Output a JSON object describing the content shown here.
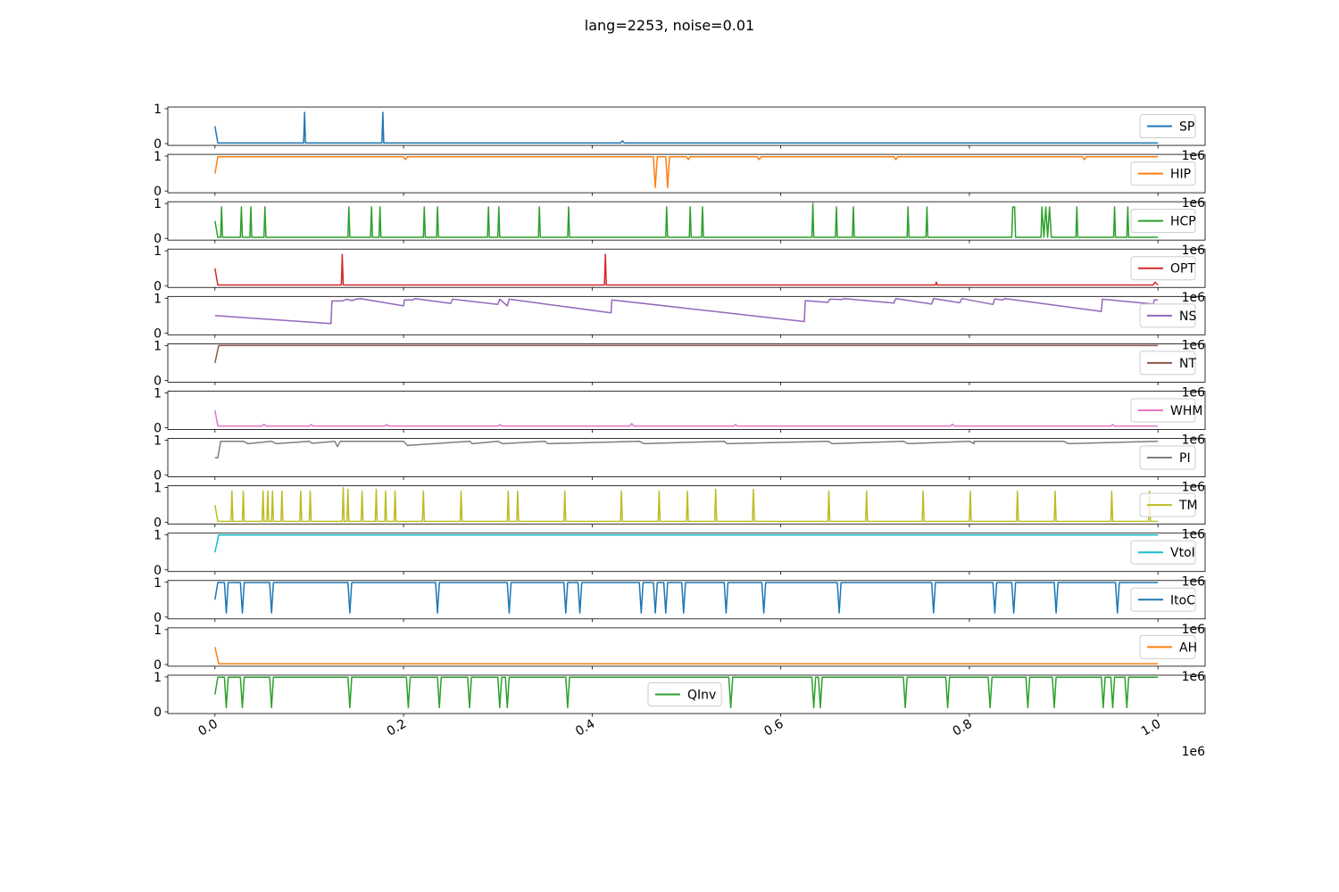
{
  "chart_data": {
    "type": "line",
    "title": "lang=2253, noise=0.01",
    "x_offset_label": "1e6",
    "xlim": [
      -0.05,
      1.05
    ],
    "xticks": [
      0.0,
      0.2,
      0.4,
      0.6,
      0.8,
      1.0
    ],
    "xtick_labels": [
      "0.0",
      "0.2",
      "0.4",
      "0.6",
      "0.8",
      "1.0"
    ],
    "ylim": [
      -0.05,
      1.05
    ],
    "yticks": [
      0,
      1
    ],
    "ytick_labels": [
      "0",
      "1"
    ],
    "grid": false,
    "panels": [
      {
        "name": "SP",
        "color": "#1f77b4",
        "legend_loc": "right",
        "x": [
          0,
          0.003,
          0.094,
          0.095,
          0.096,
          0.177,
          0.178,
          0.179,
          0.43,
          0.432,
          0.434,
          1.0
        ],
        "y": [
          0.5,
          0.02,
          0.02,
          0.9,
          0.02,
          0.02,
          0.9,
          0.02,
          0.02,
          0.08,
          0.02,
          0.02
        ]
      },
      {
        "name": "HIP",
        "color": "#ff7f0e",
        "legend_loc": "right",
        "x": [
          0,
          0.003,
          0.2,
          0.202,
          0.204,
          0.465,
          0.467,
          0.469,
          0.478,
          0.48,
          0.482,
          0.5,
          0.502,
          0.504,
          0.575,
          0.577,
          0.579,
          0.72,
          0.722,
          0.724,
          0.92,
          0.922,
          0.924,
          1.0
        ],
        "y": [
          0.5,
          0.98,
          0.98,
          0.9,
          0.98,
          0.98,
          0.1,
          0.98,
          0.98,
          0.1,
          0.98,
          0.98,
          0.9,
          0.98,
          0.98,
          0.9,
          0.98,
          0.98,
          0.9,
          0.98,
          0.98,
          0.9,
          0.98,
          0.98
        ]
      },
      {
        "name": "HCP",
        "color": "#2ca02c",
        "legend_loc": "right",
        "x": [
          0,
          0.003,
          0.006,
          0.007,
          0.008,
          0.027,
          0.028,
          0.029,
          0.037,
          0.038,
          0.039,
          0.052,
          0.053,
          0.054,
          0.141,
          0.142,
          0.143,
          0.165,
          0.166,
          0.167,
          0.174,
          0.175,
          0.176,
          0.221,
          0.222,
          0.223,
          0.235,
          0.236,
          0.237,
          0.289,
          0.29,
          0.291,
          0.3,
          0.301,
          0.302,
          0.343,
          0.344,
          0.345,
          0.374,
          0.375,
          0.376,
          0.478,
          0.479,
          0.48,
          0.503,
          0.504,
          0.505,
          0.516,
          0.517,
          0.518,
          0.633,
          0.634,
          0.635,
          0.658,
          0.659,
          0.66,
          0.676,
          0.677,
          0.678,
          0.734,
          0.735,
          0.736,
          0.754,
          0.755,
          0.756,
          0.845,
          0.846,
          0.848,
          0.849,
          0.876,
          0.877,
          0.879,
          0.881,
          0.883,
          0.885,
          0.887,
          0.9,
          0.913,
          0.914,
          0.915,
          0.953,
          0.954,
          0.955,
          0.967,
          0.968,
          0.969,
          1.0
        ],
        "y": [
          0.5,
          0.03,
          0.03,
          0.9,
          0.03,
          0.03,
          0.9,
          0.03,
          0.03,
          0.9,
          0.03,
          0.03,
          0.9,
          0.03,
          0.03,
          0.9,
          0.03,
          0.03,
          0.9,
          0.03,
          0.03,
          0.9,
          0.03,
          0.03,
          0.9,
          0.03,
          0.03,
          0.9,
          0.03,
          0.03,
          0.9,
          0.03,
          0.03,
          0.9,
          0.03,
          0.03,
          0.9,
          0.03,
          0.03,
          0.9,
          0.03,
          0.03,
          0.9,
          0.03,
          0.03,
          0.9,
          0.03,
          0.03,
          0.9,
          0.03,
          0.03,
          1.0,
          0.03,
          0.03,
          0.9,
          0.03,
          0.03,
          0.9,
          0.03,
          0.03,
          0.9,
          0.03,
          0.03,
          0.9,
          0.03,
          0.03,
          0.9,
          0.9,
          0.03,
          0.03,
          0.9,
          0.03,
          0.9,
          0.03,
          0.9,
          0.03,
          0.03,
          0.03,
          0.9,
          0.03,
          0.03,
          0.9,
          0.03,
          0.03,
          0.9,
          0.03,
          0.03
        ]
      },
      {
        "name": "OPT",
        "color": "#d62728",
        "legend_loc": "right",
        "x": [
          0,
          0.003,
          0.134,
          0.135,
          0.136,
          0.413,
          0.414,
          0.415,
          0.764,
          0.765,
          0.766,
          0.995,
          0.997,
          1.0
        ],
        "y": [
          0.5,
          0.02,
          0.02,
          0.9,
          0.02,
          0.02,
          0.9,
          0.02,
          0.02,
          0.1,
          0.02,
          0.02,
          0.1,
          0.02
        ]
      },
      {
        "name": "NS",
        "color": "#9467bd",
        "legend_loc": "right",
        "x": [
          0,
          0.123,
          0.124,
          0.135,
          0.14,
          0.145,
          0.15,
          0.154,
          0.2,
          0.201,
          0.21,
          0.212,
          0.25,
          0.252,
          0.3,
          0.302,
          0.31,
          0.312,
          0.42,
          0.421,
          0.625,
          0.626,
          0.65,
          0.652,
          0.665,
          0.667,
          0.72,
          0.722,
          0.76,
          0.762,
          0.79,
          0.792,
          0.825,
          0.827,
          0.835,
          0.838,
          0.94,
          0.941,
          0.995,
          0.996,
          1.0
        ],
        "y": [
          0.5,
          0.27,
          0.92,
          0.92,
          0.97,
          0.93,
          0.97,
          0.99,
          0.78,
          0.95,
          0.95,
          0.99,
          0.85,
          0.97,
          0.82,
          0.97,
          0.78,
          0.97,
          0.58,
          0.95,
          0.33,
          0.93,
          0.88,
          0.97,
          0.96,
          0.99,
          0.86,
          0.99,
          0.83,
          0.99,
          0.87,
          0.99,
          0.82,
          0.98,
          0.95,
          0.99,
          0.62,
          0.97,
          0.83,
          0.95,
          0.95
        ]
      },
      {
        "name": "NT",
        "color": "#8c564b",
        "legend_loc": "right",
        "x": [
          0,
          0.004,
          1.0
        ],
        "y": [
          0.5,
          1.0,
          1.0
        ]
      },
      {
        "name": "WHM",
        "color": "#e377c2",
        "legend_loc": "right",
        "x": [
          0,
          0.003,
          0.05,
          0.052,
          0.054,
          0.1,
          0.102,
          0.104,
          0.18,
          0.182,
          0.184,
          0.3,
          0.302,
          0.304,
          0.44,
          0.442,
          0.444,
          0.55,
          0.552,
          0.554,
          0.78,
          0.782,
          0.784,
          0.95,
          0.952,
          0.954,
          1.0
        ],
        "y": [
          0.5,
          0.05,
          0.05,
          0.1,
          0.05,
          0.05,
          0.09,
          0.05,
          0.05,
          0.09,
          0.05,
          0.05,
          0.09,
          0.05,
          0.05,
          0.12,
          0.05,
          0.05,
          0.09,
          0.05,
          0.05,
          0.1,
          0.05,
          0.05,
          0.09,
          0.05,
          0.05
        ]
      },
      {
        "name": "PI",
        "color": "#7f7f7f",
        "legend_loc": "right",
        "x": [
          0,
          0.003,
          0.006,
          0.03,
          0.035,
          0.06,
          0.065,
          0.1,
          0.103,
          0.127,
          0.13,
          0.133,
          0.2,
          0.204,
          0.27,
          0.273,
          0.3,
          0.305,
          0.35,
          0.353,
          0.45,
          0.455,
          0.54,
          0.543,
          0.65,
          0.655,
          0.73,
          0.735,
          0.8,
          0.805,
          0.805,
          0.81,
          0.9,
          0.905,
          1.0
        ],
        "y": [
          0.5,
          0.5,
          0.97,
          0.97,
          0.9,
          0.97,
          0.9,
          0.97,
          0.91,
          0.97,
          0.82,
          0.97,
          0.97,
          0.85,
          0.97,
          0.9,
          0.97,
          0.9,
          0.97,
          0.9,
          0.97,
          0.9,
          0.97,
          0.9,
          0.97,
          0.9,
          0.97,
          0.9,
          0.97,
          0.9,
          0.97,
          0.97,
          0.97,
          0.9,
          0.97
        ]
      },
      {
        "name": "TM",
        "color": "#bcbd22",
        "legend_loc": "right",
        "x": [
          0,
          0.003,
          0.017,
          0.018,
          0.019,
          0.029,
          0.03,
          0.031,
          0.05,
          0.051,
          0.052,
          0.055,
          0.056,
          0.057,
          0.06,
          0.061,
          0.062,
          0.07,
          0.071,
          0.072,
          0.09,
          0.091,
          0.092,
          0.1,
          0.101,
          0.102,
          0.135,
          0.136,
          0.137,
          0.14,
          0.141,
          0.142,
          0.155,
          0.156,
          0.157,
          0.17,
          0.171,
          0.172,
          0.18,
          0.181,
          0.182,
          0.19,
          0.191,
          0.192,
          0.22,
          0.221,
          0.222,
          0.26,
          0.261,
          0.262,
          0.31,
          0.311,
          0.312,
          0.32,
          0.321,
          0.322,
          0.37,
          0.371,
          0.372,
          0.43,
          0.431,
          0.432,
          0.47,
          0.471,
          0.472,
          0.5,
          0.501,
          0.502,
          0.53,
          0.531,
          0.532,
          0.57,
          0.571,
          0.572,
          0.65,
          0.651,
          0.652,
          0.69,
          0.691,
          0.692,
          0.75,
          0.751,
          0.752,
          0.8,
          0.801,
          0.802,
          0.85,
          0.851,
          0.852,
          0.89,
          0.891,
          0.892,
          0.95,
          0.951,
          0.952,
          0.99,
          0.991,
          0.992,
          1.0
        ],
        "y": [
          0.5,
          0.03,
          0.03,
          0.9,
          0.03,
          0.03,
          0.9,
          0.03,
          0.03,
          0.9,
          0.03,
          0.03,
          0.9,
          0.03,
          0.03,
          0.9,
          0.03,
          0.03,
          0.9,
          0.03,
          0.03,
          0.9,
          0.03,
          0.03,
          0.9,
          0.03,
          0.03,
          1.0,
          0.03,
          0.03,
          0.95,
          0.03,
          0.03,
          0.9,
          0.03,
          0.03,
          0.95,
          0.03,
          0.03,
          0.9,
          0.03,
          0.03,
          0.9,
          0.03,
          0.03,
          0.9,
          0.03,
          0.03,
          0.9,
          0.03,
          0.03,
          0.9,
          0.03,
          0.03,
          0.9,
          0.03,
          0.03,
          0.9,
          0.03,
          0.03,
          0.9,
          0.03,
          0.03,
          0.9,
          0.03,
          0.03,
          0.9,
          0.03,
          0.03,
          0.95,
          0.03,
          0.03,
          0.95,
          0.03,
          0.03,
          0.9,
          0.03,
          0.03,
          0.9,
          0.03,
          0.03,
          0.9,
          0.03,
          0.03,
          0.9,
          0.03,
          0.03,
          0.9,
          0.03,
          0.03,
          0.9,
          0.03,
          0.03,
          0.9,
          0.03,
          0.03,
          0.9,
          0.03,
          0.03
        ]
      },
      {
        "name": "VtoI",
        "color": "#17becf",
        "legend_loc": "right",
        "x": [
          0,
          0.004,
          1.0
        ],
        "y": [
          0.5,
          1.0,
          1.0
        ]
      },
      {
        "name": "ItoC",
        "color": "#1f77b4",
        "legend_loc": "right",
        "x": [
          0,
          0.003,
          0.01,
          0.012,
          0.014,
          0.027,
          0.029,
          0.031,
          0.058,
          0.06,
          0.062,
          0.141,
          0.143,
          0.145,
          0.234,
          0.236,
          0.238,
          0.31,
          0.312,
          0.314,
          0.37,
          0.372,
          0.374,
          0.385,
          0.387,
          0.389,
          0.45,
          0.452,
          0.454,
          0.465,
          0.467,
          0.469,
          0.476,
          0.478,
          0.48,
          0.495,
          0.497,
          0.499,
          0.54,
          0.542,
          0.544,
          0.58,
          0.582,
          0.584,
          0.66,
          0.662,
          0.664,
          0.76,
          0.762,
          0.764,
          0.825,
          0.827,
          0.829,
          0.845,
          0.847,
          0.849,
          0.89,
          0.892,
          0.894,
          0.955,
          0.957,
          0.959,
          1.0
        ],
        "y": [
          0.5,
          0.99,
          0.99,
          0.12,
          0.99,
          0.99,
          0.12,
          0.99,
          0.99,
          0.12,
          0.99,
          0.99,
          0.12,
          0.99,
          0.99,
          0.12,
          0.99,
          0.99,
          0.12,
          0.99,
          0.99,
          0.12,
          0.99,
          0.99,
          0.12,
          0.99,
          0.99,
          0.12,
          0.99,
          0.99,
          0.12,
          0.99,
          0.99,
          0.12,
          0.99,
          0.99,
          0.12,
          0.99,
          0.99,
          0.12,
          0.99,
          0.99,
          0.12,
          0.99,
          0.99,
          0.12,
          0.99,
          0.99,
          0.12,
          0.99,
          0.99,
          0.12,
          0.99,
          0.99,
          0.12,
          0.99,
          0.99,
          0.12,
          0.99,
          0.99,
          0.12,
          0.99,
          0.99
        ]
      },
      {
        "name": "AH",
        "color": "#ff7f0e",
        "legend_loc": "right",
        "x": [
          0,
          0.004,
          1.0
        ],
        "y": [
          0.5,
          0.02,
          0.02
        ]
      },
      {
        "name": "QInv",
        "color": "#2ca02c",
        "legend_loc": "center",
        "x": [
          0,
          0.003,
          0.01,
          0.012,
          0.014,
          0.027,
          0.029,
          0.031,
          0.058,
          0.06,
          0.062,
          0.141,
          0.143,
          0.145,
          0.203,
          0.205,
          0.207,
          0.236,
          0.238,
          0.24,
          0.268,
          0.27,
          0.272,
          0.3,
          0.302,
          0.304,
          0.308,
          0.31,
          0.312,
          0.372,
          0.374,
          0.376,
          0.545,
          0.547,
          0.549,
          0.633,
          0.635,
          0.637,
          0.64,
          0.642,
          0.644,
          0.73,
          0.732,
          0.734,
          0.775,
          0.777,
          0.779,
          0.82,
          0.822,
          0.824,
          0.86,
          0.862,
          0.864,
          0.888,
          0.89,
          0.892,
          0.94,
          0.942,
          0.944,
          0.95,
          0.952,
          0.954,
          0.965,
          0.967,
          0.969,
          1.0
        ],
        "y": [
          0.5,
          0.99,
          0.99,
          0.12,
          0.99,
          0.99,
          0.12,
          0.99,
          0.99,
          0.12,
          0.99,
          0.99,
          0.12,
          0.99,
          0.99,
          0.12,
          0.99,
          0.99,
          0.12,
          0.99,
          0.99,
          0.12,
          0.99,
          0.99,
          0.12,
          0.99,
          0.99,
          0.12,
          0.99,
          0.99,
          0.12,
          0.99,
          0.99,
          0.12,
          0.99,
          0.99,
          0.12,
          0.99,
          0.99,
          0.12,
          0.99,
          0.99,
          0.12,
          0.99,
          0.99,
          0.12,
          0.99,
          0.99,
          0.12,
          0.99,
          0.99,
          0.12,
          0.99,
          0.99,
          0.12,
          0.99,
          0.99,
          0.12,
          0.99,
          0.99,
          0.12,
          0.99,
          0.99,
          0.12,
          0.99,
          0.99
        ]
      }
    ]
  }
}
